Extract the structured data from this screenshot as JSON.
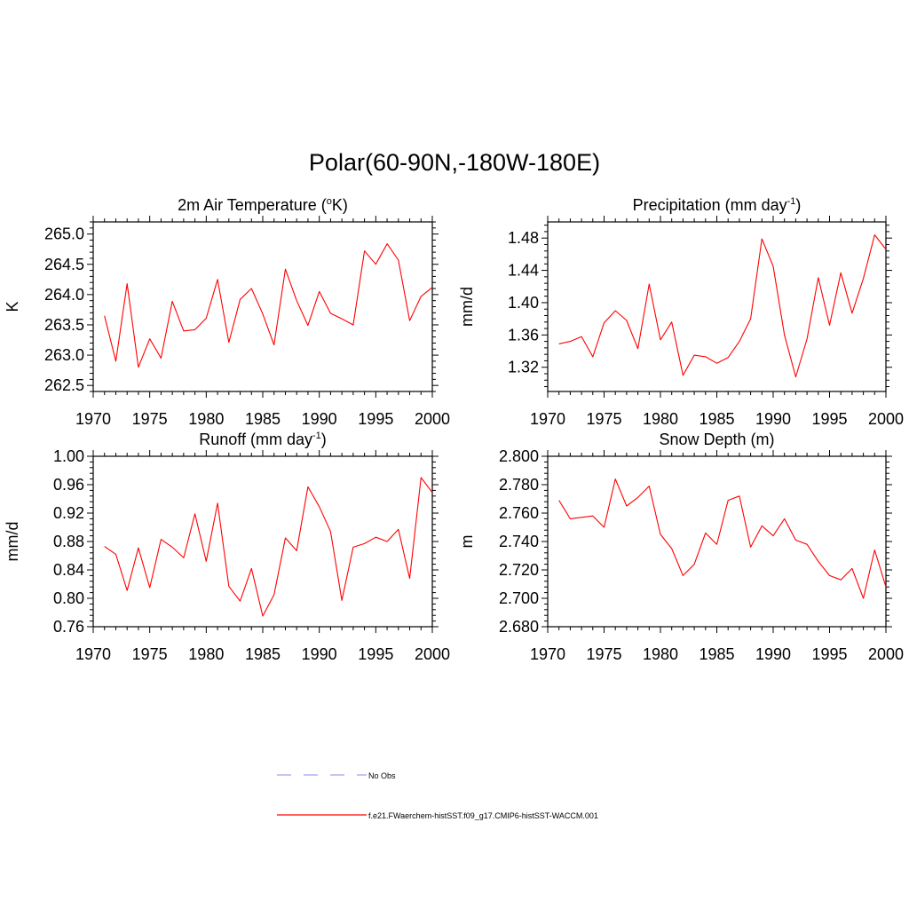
{
  "title": "Polar(60-90N,-180W-180E)",
  "legend": [
    {
      "label": "No Obs",
      "color": "#a0a0f0",
      "style": "dashed"
    },
    {
      "label": "f.e21.FWaerchem-histSST.f09_g17.CMIP6-histSST-WACCM.001",
      "color": "#ff0000",
      "style": "solid"
    }
  ],
  "chart_data": [
    {
      "type": "line",
      "title": "2m Air Temperature (oK)",
      "title_parts": [
        "2m Air Temperature (",
        "o",
        "K)"
      ],
      "ylabel": "K",
      "xlim": [
        1970,
        2000
      ],
      "ylim": [
        262.4,
        265.2
      ],
      "xticks": [
        1970,
        1975,
        1980,
        1985,
        1990,
        1995,
        2000
      ],
      "yticks": [
        "262.5",
        "263.0",
        "263.5",
        "264.0",
        "264.5",
        "265.0"
      ],
      "grid": false,
      "series": [
        {
          "color": "#ff0000",
          "x": [
            1971,
            1972,
            1973,
            1974,
            1975,
            1976,
            1977,
            1978,
            1979,
            1980,
            1981,
            1982,
            1983,
            1984,
            1985,
            1986,
            1987,
            1988,
            1989,
            1990,
            1991,
            1992,
            1993,
            1994,
            1995,
            1996,
            1997,
            1998,
            1999,
            2000
          ],
          "y": [
            263.65,
            262.9,
            264.18,
            262.8,
            263.27,
            262.95,
            263.89,
            263.4,
            263.42,
            263.61,
            264.25,
            263.21,
            263.92,
            264.1,
            263.68,
            263.17,
            264.42,
            263.9,
            263.49,
            264.05,
            263.69,
            263.6,
            263.5,
            264.72,
            264.5,
            264.84,
            264.57,
            263.57,
            263.97,
            264.12
          ]
        }
      ]
    },
    {
      "type": "line",
      "title": "Precipitation (mm day-1)",
      "title_parts": [
        "Precipitation (mm day",
        "-1",
        ")"
      ],
      "ylabel": "mm/d",
      "xlim": [
        1970,
        2000
      ],
      "ylim": [
        1.29,
        1.5
      ],
      "xticks": [
        1970,
        1975,
        1980,
        1985,
        1990,
        1995,
        2000
      ],
      "yticks": [
        "1.32",
        "1.36",
        "1.40",
        "1.44",
        "1.48"
      ],
      "grid": false,
      "series": [
        {
          "color": "#ff0000",
          "x": [
            1971,
            1972,
            1973,
            1974,
            1975,
            1976,
            1977,
            1978,
            1979,
            1980,
            1981,
            1982,
            1983,
            1984,
            1985,
            1986,
            1987,
            1988,
            1989,
            1990,
            1991,
            1992,
            1993,
            1994,
            1995,
            1996,
            1997,
            1998,
            1999,
            2000
          ],
          "y": [
            1.349,
            1.352,
            1.358,
            1.333,
            1.375,
            1.39,
            1.378,
            1.343,
            1.423,
            1.354,
            1.376,
            1.31,
            1.335,
            1.333,
            1.325,
            1.332,
            1.352,
            1.38,
            1.479,
            1.445,
            1.36,
            1.308,
            1.355,
            1.431,
            1.372,
            1.437,
            1.387,
            1.43,
            1.484,
            1.466
          ]
        }
      ]
    },
    {
      "type": "line",
      "title": "Runoff (mm day-1)",
      "title_parts": [
        "Runoff (mm day",
        "-1",
        ")"
      ],
      "ylabel": "mm/d",
      "xlim": [
        1970,
        2000
      ],
      "ylim": [
        0.76,
        1.0
      ],
      "xticks": [
        1970,
        1975,
        1980,
        1985,
        1990,
        1995,
        2000
      ],
      "yticks": [
        "0.76",
        "0.80",
        "0.84",
        "0.88",
        "0.92",
        "0.96",
        "1.00"
      ],
      "grid": false,
      "series": [
        {
          "color": "#ff0000",
          "x": [
            1971,
            1972,
            1973,
            1974,
            1975,
            1976,
            1977,
            1978,
            1979,
            1980,
            1981,
            1982,
            1983,
            1984,
            1985,
            1986,
            1987,
            1988,
            1989,
            1990,
            1991,
            1992,
            1993,
            1994,
            1995,
            1996,
            1997,
            1998,
            1999,
            2000
          ],
          "y": [
            0.873,
            0.862,
            0.811,
            0.871,
            0.815,
            0.883,
            0.872,
            0.857,
            0.919,
            0.852,
            0.934,
            0.817,
            0.796,
            0.842,
            0.775,
            0.805,
            0.885,
            0.867,
            0.957,
            0.929,
            0.894,
            0.797,
            0.872,
            0.877,
            0.886,
            0.88,
            0.897,
            0.828,
            0.97,
            0.949
          ]
        }
      ]
    },
    {
      "type": "line",
      "title": "Snow Depth (m)",
      "title_parts": [
        "Snow Depth (m)"
      ],
      "ylabel": "m",
      "xlim": [
        1970,
        2000
      ],
      "ylim": [
        2.68,
        2.8
      ],
      "xticks": [
        1970,
        1975,
        1980,
        1985,
        1990,
        1995,
        2000
      ],
      "yticks": [
        "2.680",
        "2.700",
        "2.720",
        "2.740",
        "2.760",
        "2.780",
        "2.800"
      ],
      "grid": false,
      "series": [
        {
          "color": "#ff0000",
          "x": [
            1971,
            1972,
            1973,
            1974,
            1975,
            1976,
            1977,
            1978,
            1979,
            1980,
            1981,
            1982,
            1983,
            1984,
            1985,
            1986,
            1987,
            1988,
            1989,
            1990,
            1991,
            1992,
            1993,
            1994,
            1995,
            1996,
            1997,
            1998,
            1999,
            2000
          ],
          "y": [
            2.769,
            2.756,
            2.757,
            2.758,
            2.75,
            2.784,
            2.765,
            2.771,
            2.779,
            2.745,
            2.735,
            2.716,
            2.724,
            2.746,
            2.738,
            2.769,
            2.772,
            2.736,
            2.751,
            2.744,
            2.756,
            2.741,
            2.738,
            2.726,
            2.716,
            2.713,
            2.721,
            2.7,
            2.734,
            2.708
          ]
        }
      ]
    }
  ]
}
